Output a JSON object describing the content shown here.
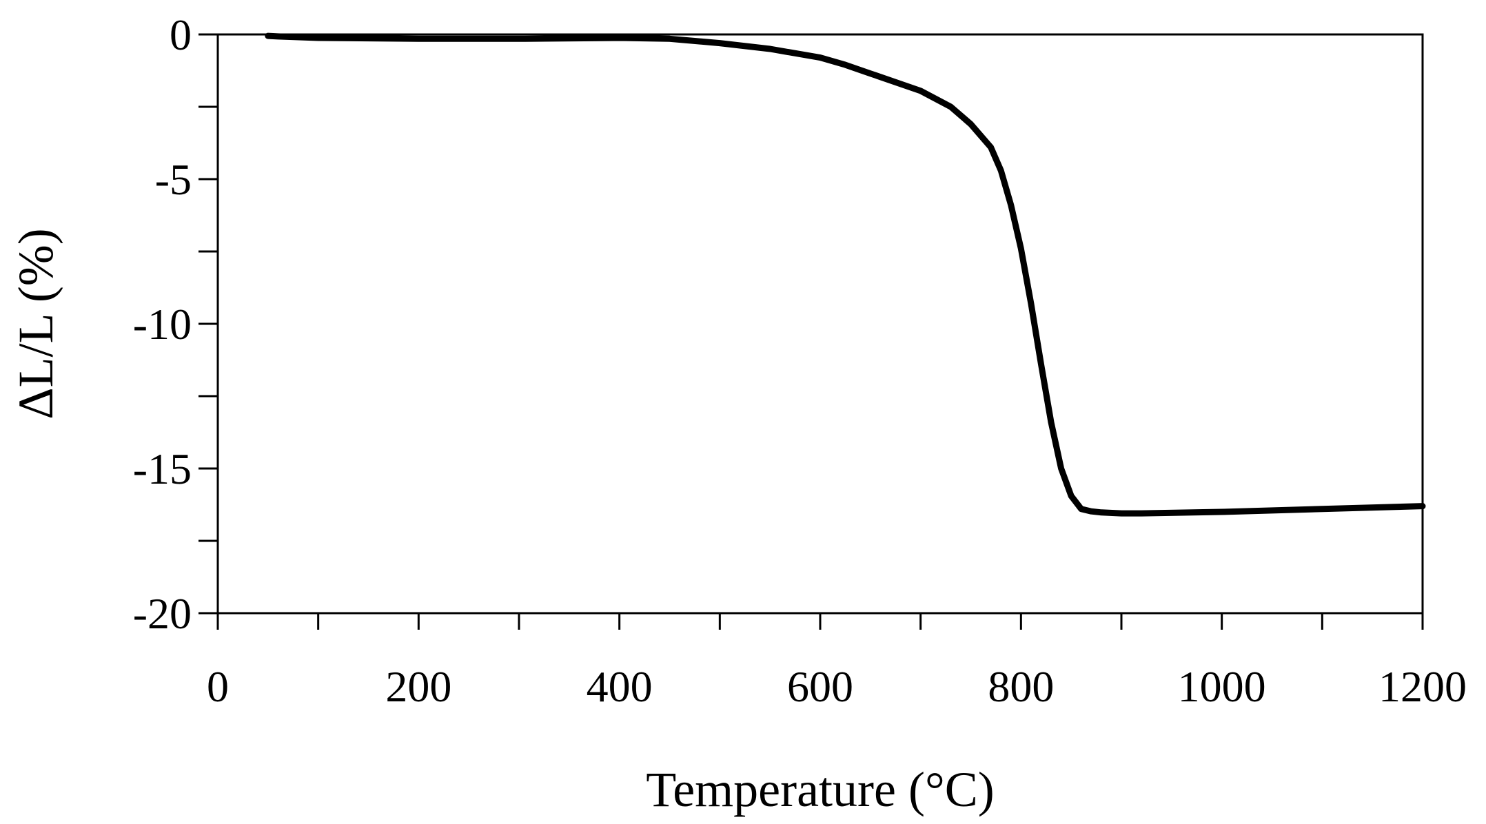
{
  "chart_data": {
    "type": "line",
    "xlabel": "Temperature (°C)",
    "ylabel": "ΔL/L (%)",
    "xlim": [
      0,
      1200
    ],
    "ylim": [
      -20,
      0
    ],
    "x_ticks": [
      0,
      200,
      400,
      600,
      800,
      1000,
      1200
    ],
    "x_minor_ticks": [
      100,
      300,
      500,
      700,
      900,
      1100
    ],
    "y_ticks": [
      0,
      -5,
      -10,
      -15,
      -20
    ],
    "y_minor_ticks": [
      -2.5,
      -7.5,
      -12.5,
      -17.5
    ],
    "grid": false,
    "line_color": "#000000",
    "series": [
      {
        "x": [
          50,
          60,
          100,
          200,
          300,
          400,
          450,
          500,
          550,
          600,
          625,
          650,
          700,
          730,
          750,
          770,
          780,
          790,
          800,
          810,
          820,
          830,
          840,
          850,
          860,
          870,
          880,
          900,
          920,
          1000,
          1100,
          1200
        ],
        "y": [
          -0.05,
          -0.07,
          -0.12,
          -0.15,
          -0.15,
          -0.12,
          -0.15,
          -0.3,
          -0.5,
          -0.8,
          -1.05,
          -1.35,
          -1.95,
          -2.5,
          -3.1,
          -3.9,
          -4.7,
          -5.9,
          -7.4,
          -9.3,
          -11.4,
          -13.4,
          -15.0,
          -15.95,
          -16.4,
          -16.48,
          -16.52,
          -16.55,
          -16.55,
          -16.5,
          -16.4,
          -16.3
        ]
      }
    ]
  }
}
